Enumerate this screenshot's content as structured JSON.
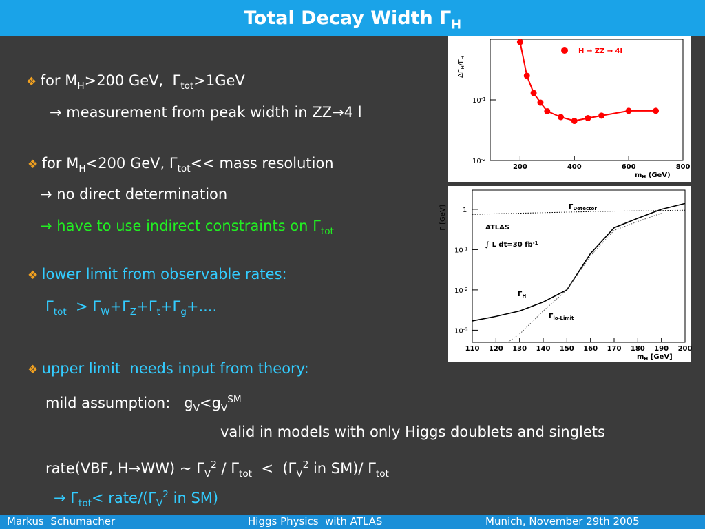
{
  "title": [
    {
      "text": "Total Decay Width Γ"
    },
    {
      "text": "H",
      "pos": "sub"
    }
  ],
  "lines": [
    {
      "bullet": true,
      "color": "#ffffff",
      "runs": [
        {
          "text": "for M"
        },
        {
          "text": "H",
          "pos": "sub"
        },
        {
          "text": ">200 GeV,  Γ"
        },
        {
          "text": "tot",
          "pos": "sub"
        },
        {
          "text": ">1GeV"
        }
      ]
    },
    {
      "bullet": false,
      "color": "#ffffff",
      "runs": [
        {
          "text": "→ measurement from peak width in ZZ→4 l"
        }
      ]
    },
    {
      "bullet": true,
      "color": "#ffffff",
      "runs": [
        {
          "text": "for M"
        },
        {
          "text": "H",
          "pos": "sub"
        },
        {
          "text": "<200 GeV, Γ"
        },
        {
          "text": "tot",
          "pos": "sub"
        },
        {
          "text": "<< mass resolution"
        }
      ]
    },
    {
      "bullet": false,
      "color": "#ffffff",
      "runs": [
        {
          "text": "→ no direct determination"
        }
      ]
    },
    {
      "bullet": false,
      "color": "#22ee22",
      "runs": [
        {
          "text": "→ have to use indirect constraints on Γ"
        },
        {
          "text": "tot",
          "pos": "sub"
        }
      ]
    },
    {
      "bullet": true,
      "color": "#33ccff",
      "runs": [
        {
          "text": "lower limit from observable rates:"
        }
      ]
    },
    {
      "bullet": false,
      "color": "#33ccff",
      "runs": [
        {
          "text": "Γ"
        },
        {
          "text": "tot",
          "pos": "sub"
        },
        {
          "text": "  > Γ"
        },
        {
          "text": "W",
          "pos": "sub"
        },
        {
          "text": "+Γ"
        },
        {
          "text": "Z",
          "pos": "sub"
        },
        {
          "text": "+Γ"
        },
        {
          "text": "t",
          "pos": "sub"
        },
        {
          "text": "+Γ"
        },
        {
          "text": "g",
          "pos": "sub"
        },
        {
          "text": "+...."
        }
      ]
    },
    {
      "bullet": true,
      "color": "#33ccff",
      "runs": [
        {
          "text": "upper limit  needs input from theory:"
        }
      ]
    },
    {
      "bullet": false,
      "color": "#ffffff",
      "runs": [
        {
          "text": "mild assumption:   g"
        },
        {
          "text": "V",
          "pos": "sub"
        },
        {
          "text": "<g"
        },
        {
          "text": "V",
          "pos": "sub"
        },
        {
          "text": "SM",
          "pos": "sup"
        }
      ]
    },
    {
      "bullet": false,
      "color": "#ffffff",
      "runs": [
        {
          "text": "valid in models with only Higgs doublets and singlets"
        }
      ]
    },
    {
      "bullet": false,
      "color": "#ffffff",
      "runs": [
        {
          "text": "rate(VBF, H→WW) ~ Γ"
        },
        {
          "text": "V",
          "pos": "sub"
        },
        {
          "text": "2",
          "pos": "sup"
        },
        {
          "text": " / Γ"
        },
        {
          "text": "tot",
          "pos": "sub"
        },
        {
          "text": "  <  (Γ"
        },
        {
          "text": "V",
          "pos": "sub"
        },
        {
          "text": "2",
          "pos": "sup"
        },
        {
          "text": " in SM)/ Γ"
        },
        {
          "text": "tot",
          "pos": "sub"
        }
      ]
    },
    {
      "bullet": false,
      "color": "#33ccff",
      "runs": [
        {
          "text": "→ Γ"
        },
        {
          "text": "tot",
          "pos": "sub"
        },
        {
          "text": "< rate/(Γ"
        },
        {
          "text": "V",
          "pos": "sub"
        },
        {
          "text": "2",
          "pos": "sup"
        },
        {
          "text": " in SM)"
        }
      ]
    }
  ],
  "footer": {
    "author": "Markus  Schumacher",
    "talk": "Higgs Physics  with ATLAS",
    "place": "Munich, November 29th 2005"
  },
  "plot_zz": {
    "type": "line",
    "log_y": true,
    "color": "#ff0000",
    "y_label": [
      {
        "text": "ΔΓ"
      },
      {
        "text": "H",
        "pos": "sub"
      },
      {
        "text": "/Γ"
      },
      {
        "text": "H",
        "pos": "sub"
      }
    ],
    "x_label": [
      {
        "text": "m"
      },
      {
        "text": "H",
        "pos": "sub"
      },
      {
        "text": " (GeV)"
      }
    ],
    "legend": "H → ZZ → 4l",
    "xlim": [
      90,
      800
    ],
    "xticks": [
      200,
      400,
      600,
      800
    ],
    "ylim": [
      0.01,
      1
    ],
    "yticks": [
      {
        "value": 0.1,
        "label": "10",
        "sup": "-1"
      },
      {
        "value": 0.01,
        "label": "10",
        "sup": "-2"
      }
    ],
    "x": [
      200,
      225,
      250,
      275,
      300,
      350,
      400,
      450,
      500,
      600,
      700
    ],
    "values": [
      0.9,
      0.25,
      0.13,
      0.09,
      0.065,
      0.052,
      0.045,
      0.05,
      0.055,
      0.066,
      0.066
    ]
  },
  "plot_width": {
    "type": "line",
    "log_y": true,
    "y_label": [
      {
        "text": "Γ [GeV]"
      }
    ],
    "x_label": [
      {
        "text": "m"
      },
      {
        "text": "H",
        "pos": "sub"
      },
      {
        "text": " [GeV]"
      }
    ],
    "experiment": "ATLAS",
    "luminosity": [
      {
        "text": "∫ L dt=30 fb"
      },
      {
        "text": "-1",
        "pos": "sup"
      }
    ],
    "xlim": [
      110,
      200
    ],
    "xticks": [
      110,
      120,
      130,
      140,
      150,
      160,
      170,
      180,
      190,
      200
    ],
    "ylim": [
      0.0005,
      3
    ],
    "yticks": [
      1,
      {
        "value": 0.1,
        "label": "10",
        "sup": "-1"
      },
      {
        "value": 0.01,
        "label": "10",
        "sup": "-2"
      },
      {
        "value": 0.001,
        "label": "10",
        "sup": "-3"
      }
    ],
    "series": [
      {
        "label": [
          {
            "text": "Γ"
          },
          {
            "text": "Detector",
            "pos": "sub"
          }
        ],
        "color": "#000000",
        "style": "dotted",
        "x": [
          110,
          130,
          150,
          170,
          185,
          200
        ],
        "values": [
          0.75,
          0.8,
          0.85,
          0.9,
          0.92,
          0.95
        ]
      },
      {
        "label": [
          {
            "text": "Γ"
          },
          {
            "text": "H",
            "pos": "sub"
          }
        ],
        "color": "#000000",
        "style": "solid",
        "x": [
          110,
          120,
          130,
          140,
          150,
          160,
          170,
          180,
          190,
          200
        ],
        "values": [
          0.0017,
          0.0022,
          0.003,
          0.005,
          0.01,
          0.08,
          0.35,
          0.6,
          1.0,
          1.4
        ]
      },
      {
        "label": [
          {
            "text": "Γ"
          },
          {
            "text": "lo-Limit",
            "pos": "sub"
          }
        ],
        "color": "#555555",
        "style": "dotted",
        "x": [
          125,
          130,
          140,
          150,
          160,
          170,
          180,
          190
        ],
        "values": [
          0.0005,
          0.0008,
          0.003,
          0.01,
          0.07,
          0.3,
          0.5,
          0.8
        ]
      }
    ]
  }
}
